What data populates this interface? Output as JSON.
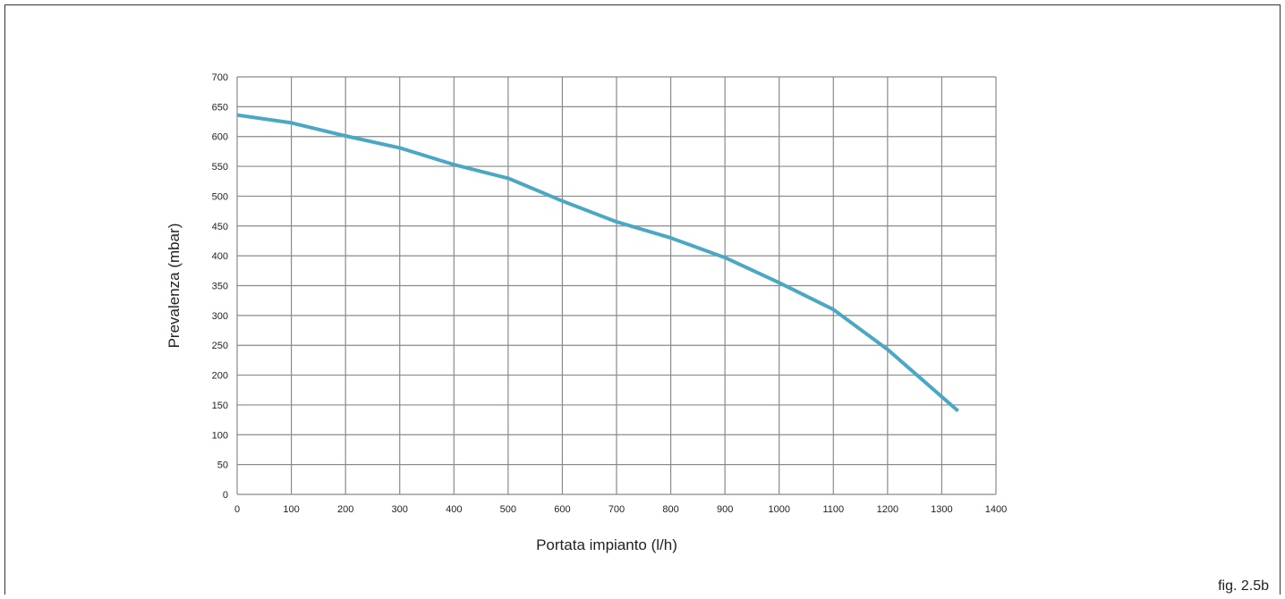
{
  "chart_data": {
    "type": "line",
    "xlabel": "Portata impianto (l/h)",
    "ylabel": "Prevalenza (mbar)",
    "xlim": [
      0,
      1400
    ],
    "ylim": [
      0,
      700
    ],
    "xticks": [
      0,
      100,
      200,
      300,
      400,
      500,
      600,
      700,
      800,
      900,
      1000,
      1100,
      1200,
      1300,
      1400
    ],
    "yticks": [
      0,
      50,
      100,
      150,
      200,
      250,
      300,
      350,
      400,
      450,
      500,
      550,
      600,
      650,
      700
    ],
    "grid": true,
    "series": [
      {
        "color": "#4aa8c4",
        "x": [
          0,
          100,
          200,
          300,
          400,
          500,
          600,
          700,
          800,
          900,
          1000,
          1100,
          1200,
          1330
        ],
        "y": [
          636,
          623,
          601,
          581,
          553,
          530,
          492,
          457,
          430,
          397,
          355,
          310,
          243,
          140
        ]
      }
    ]
  },
  "figure_label": "fig. 2.5b"
}
